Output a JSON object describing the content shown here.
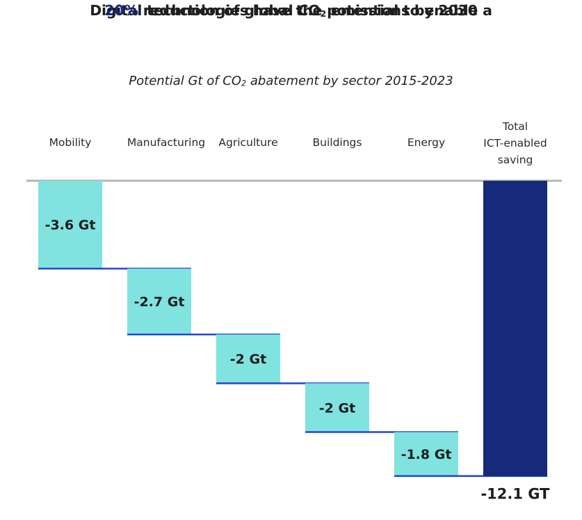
{
  "chart_data": {
    "type": "waterfall",
    "title_line1": "Digital technologies have the potential to enable a",
    "title_line2_highlight": "20%",
    "title_line2_pre": " reduction of global CO",
    "title_line2_sub": "2",
    "title_line2_post": " emissions by 2030",
    "subtitle_pre": "Potential Gt of CO",
    "subtitle_sub": "2",
    "subtitle_post": " abatement by sector 2015-2023",
    "categories": [
      "Mobility",
      "Manufacturing",
      "Agriculture",
      "Buildings",
      "Energy"
    ],
    "values": [
      -3.6,
      -2.7,
      -2,
      -2,
      -1.8
    ],
    "value_labels": [
      "-3.6 Gt",
      "-2.7 Gt",
      "-2 Gt",
      "-2 Gt",
      "-1.8 Gt"
    ],
    "total": {
      "label_lines": [
        "Total",
        "ICT-enabled",
        "saving"
      ],
      "value": -12.1,
      "value_label": "-12.1 GT"
    },
    "units": "Gt CO2",
    "colors": {
      "step_bar": "#80e3df",
      "total_bar": "#152a7a",
      "connector": "#2344d6",
      "baseline": "#b5b5b5",
      "highlight_text": "#152a7a"
    }
  }
}
